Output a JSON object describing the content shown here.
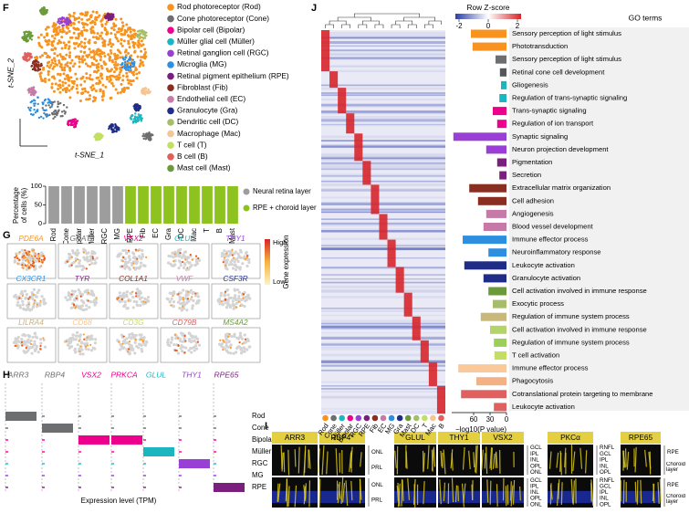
{
  "panel_labels": [
    "F",
    "G",
    "H",
    "I",
    "J"
  ],
  "tsne": {
    "xlabel": "t-SNE_1",
    "ylabel": "t-SNE_2",
    "legend": [
      {
        "name": "Rod photoreceptor (Rod)",
        "color": "#f7931e"
      },
      {
        "name": "Cone photoreceptor (Cone)",
        "color": "#6d6e70"
      },
      {
        "name": "Bipolar cell (Bipolar)",
        "color": "#ec008c"
      },
      {
        "name": "Müller glial cell (Müller)",
        "color": "#1cb5c0"
      },
      {
        "name": "Retinal ganglion cell (RGC)",
        "color": "#9a3fd6"
      },
      {
        "name": "Microglia (MG)",
        "color": "#2e8fe0"
      },
      {
        "name": "Retinal pigment epithelium (RPE)",
        "color": "#7b1f7e"
      },
      {
        "name": "Fibroblast (Fib)",
        "color": "#8b2e22"
      },
      {
        "name": "Endothelial cell (EC)",
        "color": "#c77aa8"
      },
      {
        "name": "Granulocyte (Gra)",
        "color": "#1f2d86"
      },
      {
        "name": "Dendritic cell (DC)",
        "color": "#a6be6a"
      },
      {
        "name": "Macrophage (Mac)",
        "color": "#f6c594"
      },
      {
        "name": "T cell (T)",
        "color": "#c3df62"
      },
      {
        "name": "B cell (B)",
        "color": "#e0605f"
      },
      {
        "name": "Mast cell (Mast)",
        "color": "#6a9a3a"
      }
    ]
  },
  "chart_data": [
    {
      "type": "bar",
      "stacked": true,
      "ylabel": [
        "Percentage",
        "of cells (%)"
      ],
      "categories": [
        "Rod",
        "Cone",
        "Bipolar",
        "Müller",
        "RGC",
        "MG",
        "RPE",
        "Fib",
        "EC",
        "Gra",
        "DC",
        "Mac",
        "T",
        "B",
        "Mast"
      ],
      "series": [
        {
          "name": "Neural retina layer",
          "color": "#9d9d9d",
          "values": [
            100,
            100,
            100,
            100,
            100,
            100,
            0,
            0,
            0,
            0,
            0,
            0,
            0,
            0,
            0
          ]
        },
        {
          "name": "RPE + choroid layer",
          "color": "#8dc21f",
          "values": [
            0,
            0,
            0,
            0,
            0,
            0,
            100,
            100,
            100,
            100,
            100,
            100,
            100,
            100,
            100
          ]
        }
      ],
      "ylim": [
        0,
        100
      ],
      "yticks": [
        0,
        50,
        100
      ]
    },
    {
      "type": "hbar",
      "title": "GO terms",
      "xlabel": "−log10(P value)",
      "categories": [
        "Sensory perception of light stimulus",
        "Phototransduction",
        "Sensory perception of light stimulus",
        "Retinal cone cell development",
        "Gliogenesis",
        "Regulation of trans-synaptic signaling",
        "Trans-synaptic signaling",
        "Regulation of ion transport",
        "Synaptic signaling",
        "Neuron projection development",
        "Pigmentation",
        "Secretion",
        "Extracellular matrix organization",
        "Cell adhesion",
        "Angiogenesis",
        "Blood vessel development",
        "Immune effector process",
        "Neuroinflammatory response",
        "Leukocyte activation",
        "Granulocyte activation",
        "Cell activation involved in immune response",
        "Exocytic process",
        "Regulation of immune system process",
        "Cell activation involved in immune response",
        "Regulation of immune system process",
        "T cell activation",
        "Immune effector process",
        "Phagocytosis",
        "Cotranslational protein targeting to membrane",
        "Leukocyte activation"
      ],
      "values": [
        65,
        62,
        20,
        12,
        10,
        13,
        25,
        17,
        97,
        37,
        17,
        13,
        68,
        52,
        37,
        42,
        80,
        33,
        77,
        42,
        33,
        25,
        47,
        30,
        23,
        22,
        88,
        55,
        83,
        23
      ],
      "colors": [
        "#f7931e",
        "#f7931e",
        "#6d6e70",
        "#55585a",
        "#1cb5c0",
        "#1cb5c0",
        "#ec008c",
        "#ec008c",
        "#9a3fd6",
        "#9a3fd6",
        "#7b1f7e",
        "#7b1f7e",
        "#8b2e22",
        "#8b2e22",
        "#c77aa8",
        "#c77aa8",
        "#2e8fe0",
        "#2e8fe0",
        "#1f2d86",
        "#1f2d86",
        "#6a9a3a",
        "#a6be6a",
        "#c8b87a",
        "#b5d36b",
        "#9bcf5a",
        "#c3df62",
        "#f9c89b",
        "#f4b183",
        "#e0605f",
        "#e0605f"
      ],
      "xlim": [
        100,
        0
      ],
      "xticks": [
        60,
        30,
        0
      ]
    }
  ],
  "heatmap": {
    "colorbar_title": "Row Z-score",
    "colorbar_ticks": [
      -2,
      0,
      2
    ],
    "columns": [
      {
        "name": "Rod",
        "color": "#f7931e"
      },
      {
        "name": "Cone",
        "color": "#6d6e70"
      },
      {
        "name": "Müller",
        "color": "#1cb5c0"
      },
      {
        "name": "Bipolar",
        "color": "#ec008c"
      },
      {
        "name": "RGC",
        "color": "#9a3fd6"
      },
      {
        "name": "RPE",
        "color": "#7b1f7e"
      },
      {
        "name": "Fib",
        "color": "#8b2e22"
      },
      {
        "name": "EC",
        "color": "#c77aa8"
      },
      {
        "name": "MG",
        "color": "#2e8fe0"
      },
      {
        "name": "Gra",
        "color": "#1f2d86"
      },
      {
        "name": "Mast",
        "color": "#6a9a3a"
      },
      {
        "name": "DC",
        "color": "#a6be6a"
      },
      {
        "name": "T",
        "color": "#c3df62"
      },
      {
        "name": "Mac",
        "color": "#f6c594"
      },
      {
        "name": "B",
        "color": "#e0605f"
      }
    ]
  },
  "feature_plots": {
    "colorbar_title": "Gene expression",
    "high": "High",
    "low": "Low",
    "genes": [
      {
        "name": "PDE6A",
        "color": "#f7931e"
      },
      {
        "name": "GNAT2",
        "color": "#6d6e70"
      },
      {
        "name": "VSX2",
        "color": "#ec008c"
      },
      {
        "name": "GLUL",
        "color": "#1cb5c0"
      },
      {
        "name": "THY1",
        "color": "#9a3fd6"
      },
      {
        "name": "CX3CR1",
        "color": "#2e8fe0"
      },
      {
        "name": "TYR",
        "color": "#7b1f7e"
      },
      {
        "name": "COL1A1",
        "color": "#8b2e22"
      },
      {
        "name": "VWF",
        "color": "#c77aa8"
      },
      {
        "name": "CSF3R",
        "color": "#1f2d86"
      },
      {
        "name": "LILRA4",
        "color": "#c8b07a"
      },
      {
        "name": "CD68",
        "color": "#f6c594"
      },
      {
        "name": "CD3G",
        "color": "#c3df62"
      },
      {
        "name": "CD79B",
        "color": "#e0605f"
      },
      {
        "name": "MS4A2",
        "color": "#6a9a3a"
      }
    ]
  },
  "violin": {
    "xlabel": "Expression level (TPM)",
    "genes": [
      {
        "name": "ARR3",
        "color": "#6d6e70"
      },
      {
        "name": "RBP4",
        "color": "#6d6e70"
      },
      {
        "name": "VSX2",
        "color": "#ec008c"
      },
      {
        "name": "PRKCA",
        "color": "#ec008c"
      },
      {
        "name": "GLUL",
        "color": "#1cb5c0"
      },
      {
        "name": "THY1",
        "color": "#9a3fd6"
      },
      {
        "name": "RPE65",
        "color": "#7b1f7e"
      }
    ],
    "cell_types": [
      "Rod",
      "Cone",
      "Bipolar",
      "Müller",
      "RGC",
      "MG",
      "RPE"
    ]
  },
  "staining": {
    "groups": [
      {
        "markers": [
          "ARR3",
          "RBP4*"
        ],
        "layers": [
          "ONL",
          "PRL"
        ]
      },
      {
        "markers": [
          "GLUL",
          "THY1",
          "VSX2"
        ],
        "layers": [
          "GCL",
          "IPL",
          "INL",
          "OPL",
          "ONL"
        ]
      },
      {
        "markers": [
          "PKCα"
        ],
        "layers": [
          "RNFL",
          "GCL",
          "IPL",
          "INL",
          "OPL"
        ]
      },
      {
        "markers": [
          "RPE65"
        ],
        "layers": [
          "RPE",
          "Choroid layer"
        ]
      }
    ]
  }
}
